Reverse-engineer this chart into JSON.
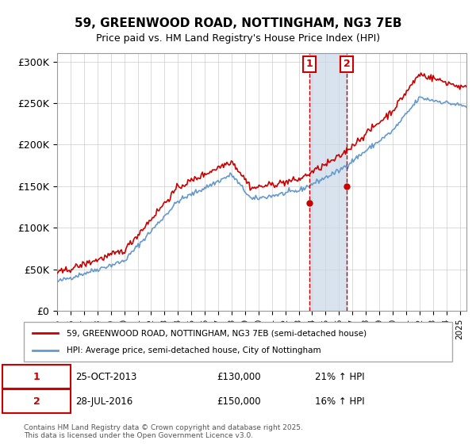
{
  "title": "59, GREENWOOD ROAD, NOTTINGHAM, NG3 7EB",
  "subtitle": "Price paid vs. HM Land Registry's House Price Index (HPI)",
  "ylabel_ticks": [
    "£0",
    "£50K",
    "£100K",
    "£150K",
    "£200K",
    "£250K",
    "£300K"
  ],
  "ytick_values": [
    0,
    50000,
    100000,
    150000,
    200000,
    250000,
    300000
  ],
  "ylim": [
    0,
    310000
  ],
  "xlim_start": 1995.0,
  "xlim_end": 2025.5,
  "legend_line1": "59, GREENWOOD ROAD, NOTTINGHAM, NG3 7EB (semi-detached house)",
  "legend_line2": "HPI: Average price, semi-detached house, City of Nottingham",
  "sale1_label": "1",
  "sale1_date": "25-OCT-2013",
  "sale1_price": "£130,000",
  "sale1_hpi": "21% ↑ HPI",
  "sale2_label": "2",
  "sale2_date": "28-JUL-2016",
  "sale2_price": "£150,000",
  "sale2_hpi": "16% ↑ HPI",
  "sale1_x": 2013.81,
  "sale1_y": 130000,
  "sale2_x": 2016.57,
  "sale2_y": 150000,
  "footer": "Contains HM Land Registry data © Crown copyright and database right 2025.\nThis data is licensed under the Open Government Licence v3.0.",
  "line_color_red": "#cc0000",
  "line_color_blue": "#6699cc",
  "shade_color": "#c8d8e8",
  "annotation_box_color": "#cc0000",
  "background_color": "#ffffff",
  "grid_color": "#cccccc"
}
